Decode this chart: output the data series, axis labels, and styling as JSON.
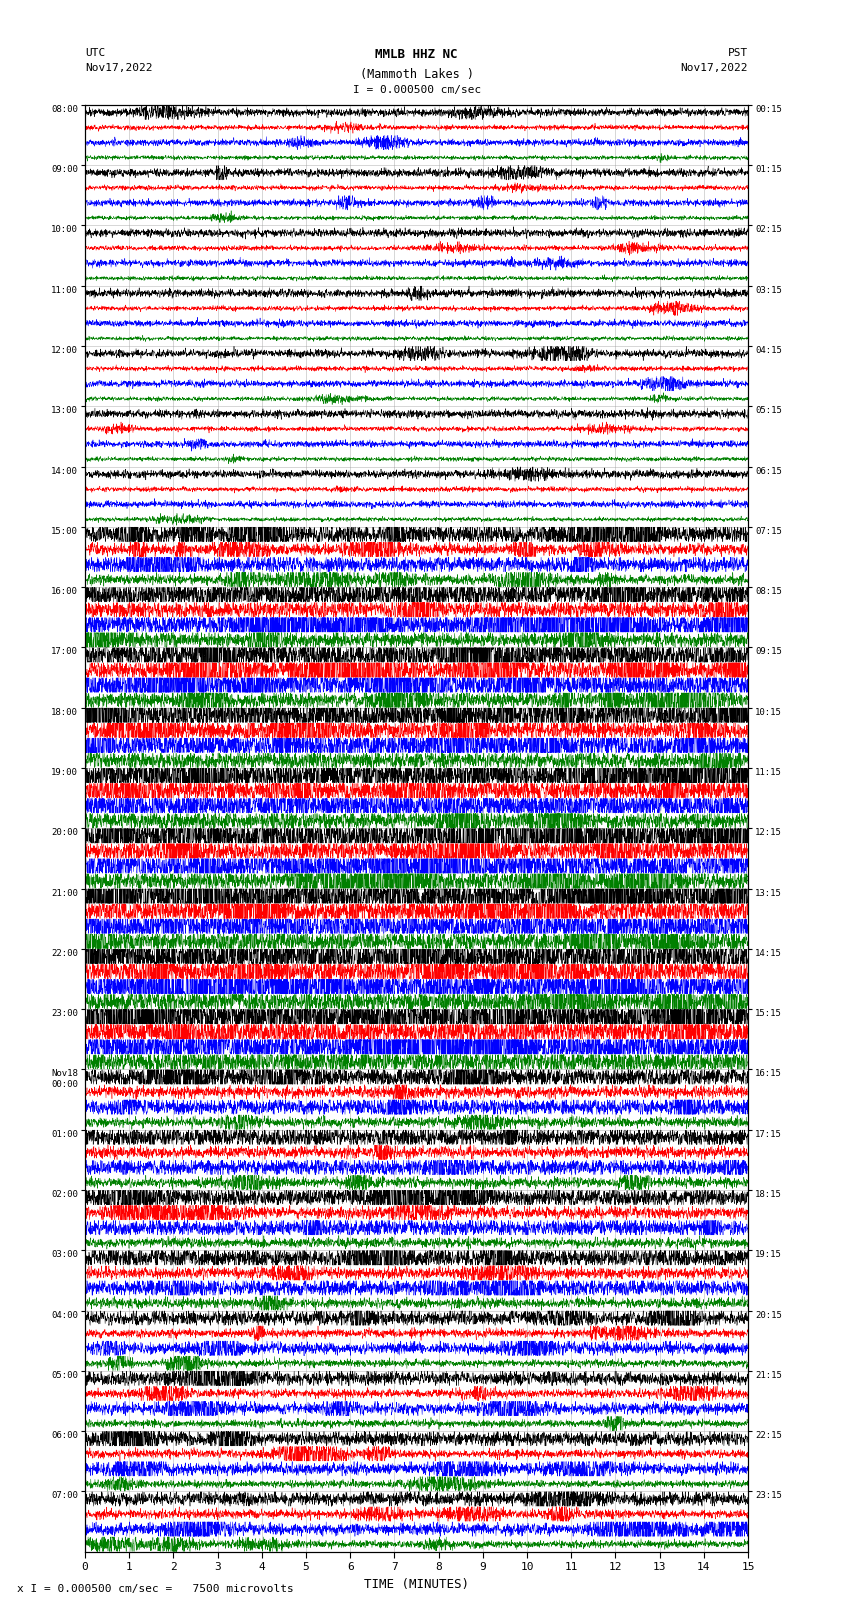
{
  "title_line1": "MMLB HHZ NC",
  "title_line2": "(Mammoth Lakes )",
  "scale_label": "I = 0.000500 cm/sec",
  "utc_label": "UTC\nNov17,2022",
  "pst_label": "PST\nNov17,2022",
  "xlabel": "TIME (MINUTES)",
  "bottom_label": "x I = 0.000500 cm/sec =   7500 microvolts",
  "xlim": [
    0,
    15
  ],
  "xticks": [
    0,
    1,
    2,
    3,
    4,
    5,
    6,
    7,
    8,
    9,
    10,
    11,
    12,
    13,
    14,
    15
  ],
  "bg_color": "#ffffff",
  "grid_color": "#999999",
  "trace_colors": [
    "black",
    "red",
    "blue",
    "green"
  ],
  "num_traces_per_hour": 4,
  "figsize": [
    8.5,
    16.13
  ],
  "dpi": 100,
  "num_hours": 24,
  "left_labels": [
    "08:00",
    "09:00",
    "10:00",
    "11:00",
    "12:00",
    "13:00",
    "14:00",
    "15:00",
    "16:00",
    "17:00",
    "18:00",
    "19:00",
    "20:00",
    "21:00",
    "22:00",
    "23:00",
    "Nov18\n00:00",
    "01:00",
    "02:00",
    "03:00",
    "04:00",
    "05:00",
    "06:00",
    "07:00"
  ],
  "right_labels": [
    "00:15",
    "01:15",
    "02:15",
    "03:15",
    "04:15",
    "05:15",
    "06:15",
    "07:15",
    "08:15",
    "09:15",
    "10:15",
    "11:15",
    "12:15",
    "13:15",
    "14:15",
    "15:15",
    "16:15",
    "17:15",
    "18:15",
    "19:15",
    "20:15",
    "21:15",
    "22:15",
    "23:15"
  ],
  "seed": 42,
  "n_samples": 3000
}
